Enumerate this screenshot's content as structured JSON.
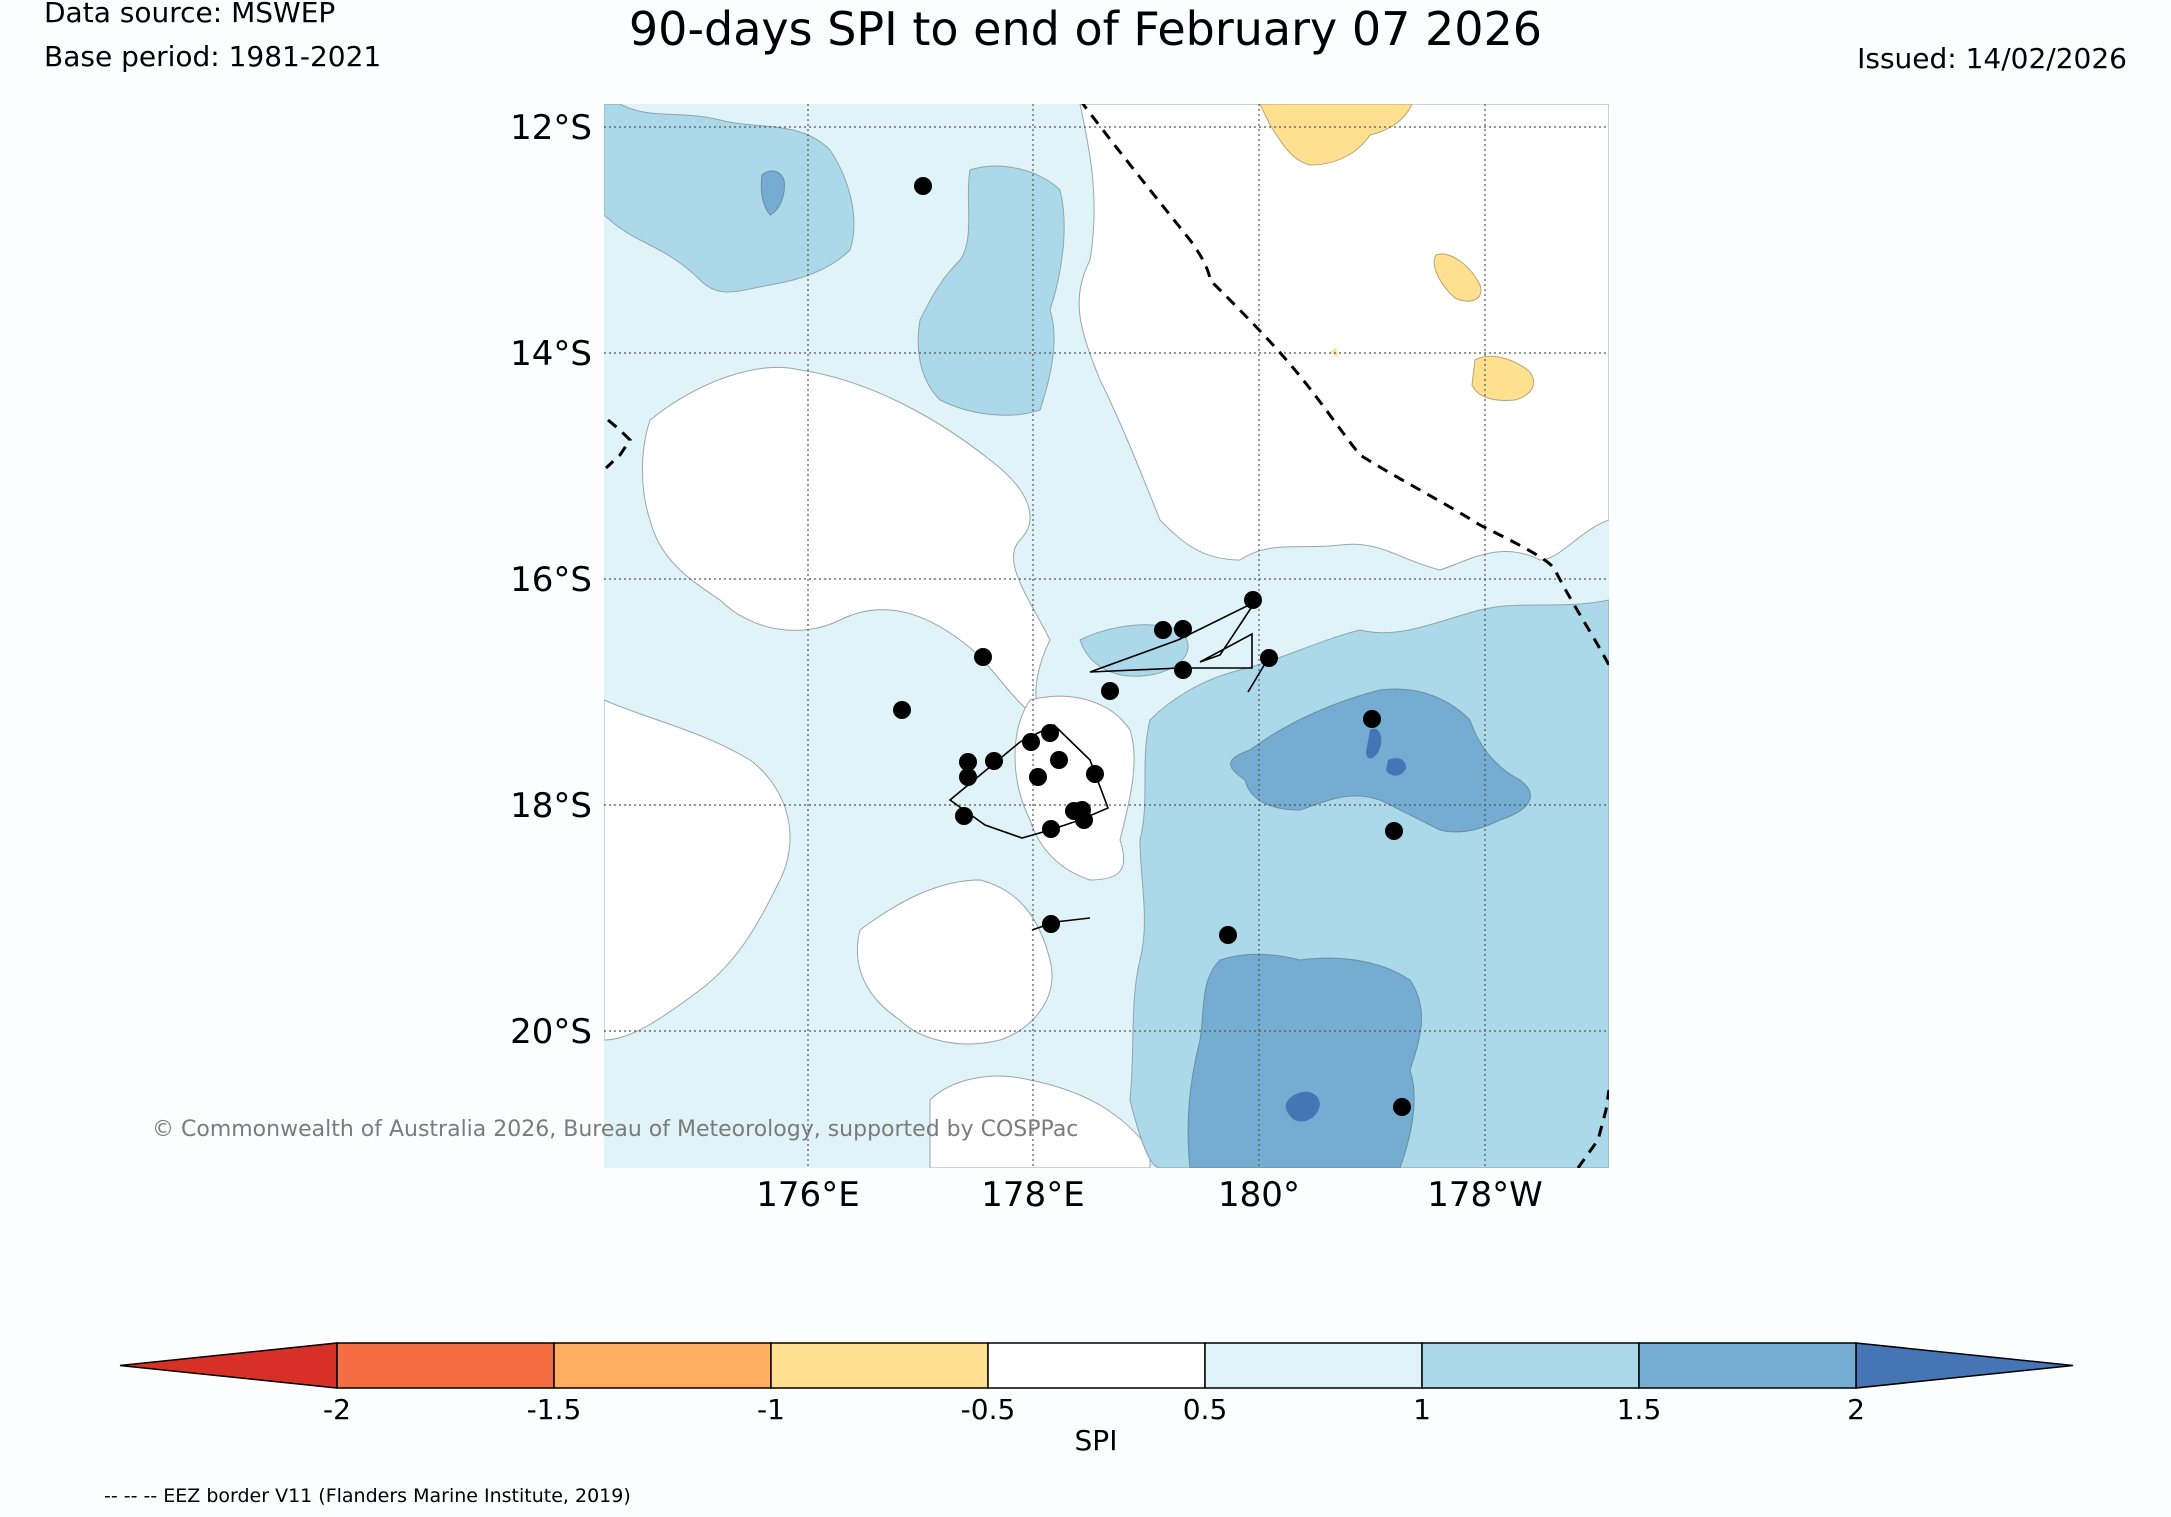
{
  "header": {
    "title": "90-days SPI to end of February 07 2026",
    "data_source": "Data source: MSWEP",
    "base_period": "Base period: 1981-2021",
    "issued": "Issued: 14/02/2026"
  },
  "map": {
    "lat_labels": [
      "12°S",
      "14°S",
      "16°S",
      "18°S",
      "20°S"
    ],
    "lon_labels": [
      "176°E",
      "178°E",
      "180°",
      "178°W"
    ],
    "copyright": "© Commonwealth of Australia 2026, Bureau of Meteorology, supported by COSPPac",
    "legend_note": "-- -- -- EEZ border V11 (Flanders Marine Institute, 2019)"
  },
  "colorbar": {
    "label": "SPI",
    "ticks": [
      "-2",
      "-1.5",
      "-1",
      "-0.5",
      "0.5",
      "1",
      "1.5",
      "2"
    ],
    "colors": {
      "below_min": "#d73027",
      "bins": [
        "#f46d43",
        "#fdae61",
        "#fee090",
        "#ffffff",
        "#e0f3f8",
        "#abd9e9",
        "#74add1"
      ],
      "above_max": "#4575b4"
    }
  }
}
